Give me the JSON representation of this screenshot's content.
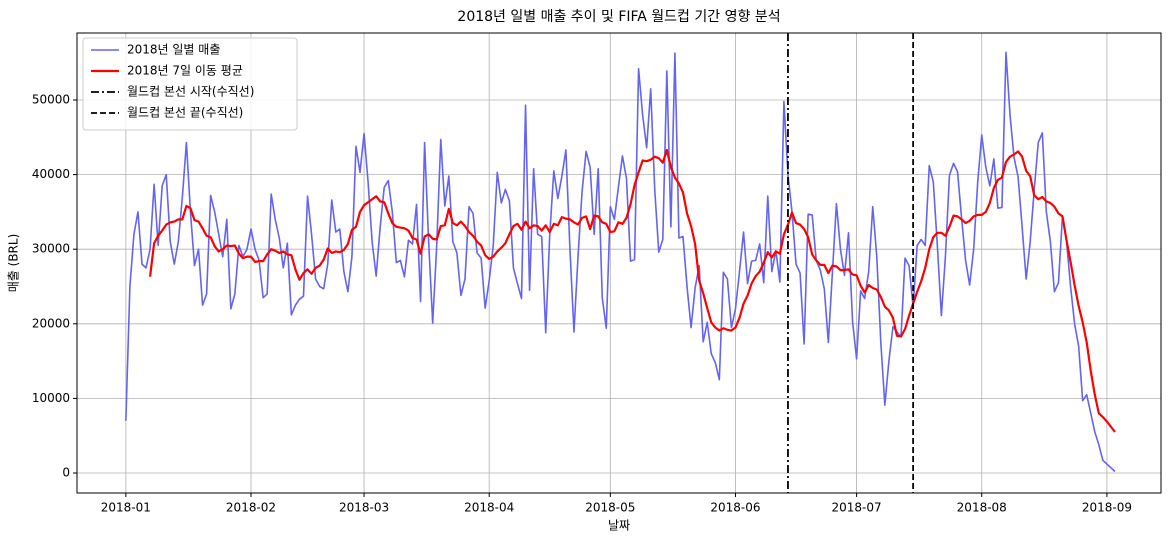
{
  "chart_data": {
    "type": "line",
    "title": "2018년 일별 매출 추이 및 FIFA 월드컵 기간 영향 분석",
    "xlabel": "날짜",
    "ylabel": "매출 (BRL)",
    "x": [
      0,
      1,
      2,
      3,
      4,
      5,
      6,
      7,
      8,
      9,
      10,
      11,
      12,
      13,
      14,
      15,
      16,
      17,
      18,
      19,
      20,
      21,
      22,
      23,
      24,
      25,
      26,
      27,
      28,
      29,
      30,
      31,
      32,
      33,
      34,
      35,
      36,
      37,
      38,
      39,
      40,
      41,
      42,
      43,
      44,
      45,
      46,
      47,
      48,
      49,
      50,
      51,
      52,
      53,
      54,
      55,
      56,
      57,
      58,
      59,
      60,
      61,
      62,
      63,
      64,
      65,
      66,
      67,
      68,
      69,
      70,
      71,
      72,
      73,
      74,
      75,
      76,
      77,
      78,
      79,
      80,
      81,
      82,
      83,
      84,
      85,
      86,
      87,
      88,
      89,
      90,
      91,
      92,
      93,
      94,
      95,
      96,
      97,
      98,
      99,
      100,
      101,
      102,
      103,
      104,
      105,
      106,
      107,
      108,
      109,
      110,
      111,
      112,
      113,
      114,
      115,
      116,
      117,
      118,
      119,
      120,
      121,
      122,
      123,
      124,
      125,
      126,
      127,
      128,
      129,
      130,
      131,
      132,
      133,
      134,
      135,
      136,
      137,
      138,
      139,
      140,
      141,
      142,
      143,
      144,
      145,
      146,
      147,
      148,
      149,
      150,
      151,
      152,
      153,
      154,
      155,
      156,
      157,
      158,
      159,
      160,
      161,
      162,
      163,
      164,
      165,
      166,
      167,
      168,
      169,
      170,
      171,
      172,
      173,
      174,
      175,
      176,
      177,
      178,
      179,
      180,
      181,
      182,
      183,
      184,
      185,
      186,
      187,
      188,
      189,
      190,
      191,
      192,
      193,
      194,
      195,
      196,
      197,
      198,
      199,
      200,
      201,
      202,
      203,
      204,
      205,
      206,
      207,
      208,
      209,
      210,
      211,
      212,
      213,
      214,
      215,
      216,
      217,
      218,
      219,
      220,
      221,
      222,
      223,
      224,
      225,
      226,
      227,
      228,
      229,
      230,
      231,
      232,
      233,
      234,
      235,
      236,
      237,
      238,
      239,
      240,
      241,
      242,
      243,
      244,
      245
    ],
    "series": [
      {
        "name": "2018년 일별 매출",
        "color": "#6464f0",
        "width": 1.6,
        "values": [
          7000,
          25000,
          32000,
          35000,
          28000,
          27500,
          30000,
          38700,
          30500,
          38500,
          40000,
          31000,
          28000,
          31000,
          37000,
          44300,
          35000,
          27800,
          30000,
          22500,
          24000,
          37200,
          35000,
          32000,
          29000,
          34000,
          22000,
          24000,
          30500,
          29000,
          30000,
          32700,
          30000,
          28500,
          23500,
          24000,
          37400,
          34000,
          31500,
          27500,
          30800,
          21200,
          22500,
          23300,
          23700,
          37100,
          32000,
          26000,
          25000,
          24700,
          28000,
          36600,
          32300,
          32700,
          27000,
          24300,
          29000,
          43800,
          40300,
          45500,
          39000,
          31000,
          26400,
          33000,
          38300,
          39200,
          35000,
          28200,
          28500,
          26300,
          31200,
          30700,
          36000,
          23000,
          44300,
          31000,
          20100,
          30500,
          44700,
          35800,
          39800,
          31000,
          29500,
          23800,
          26000,
          35700,
          34800,
          29500,
          28800,
          22100,
          25800,
          30500,
          40300,
          36200,
          38000,
          36500,
          27500,
          25400,
          23400,
          49300,
          24500,
          40800,
          32000,
          31700,
          18800,
          32000,
          40500,
          36800,
          39800,
          43300,
          30000,
          18900,
          29000,
          37700,
          43100,
          41000,
          32000,
          40800,
          23500,
          19400,
          35700,
          34000,
          38300,
          42500,
          39500,
          28400,
          28600,
          54200,
          48000,
          43600,
          51500,
          38000,
          29600,
          31300,
          53900,
          33000,
          56300,
          31500,
          31700,
          25000,
          19500,
          24800,
          27800,
          17600,
          20200,
          16000,
          14800,
          12500,
          26900,
          26000,
          19500,
          22000,
          27000,
          32300,
          25400,
          28400,
          28500,
          30700,
          25500,
          37100,
          27000,
          29800,
          25600,
          49800,
          40000,
          35000,
          28000,
          26800,
          17300,
          34700,
          34600,
          28500,
          27200,
          24700,
          17500,
          26800,
          36100,
          30000,
          26500,
          32200,
          20300,
          15300,
          24400,
          23400,
          27000,
          35700,
          29000,
          17500,
          9100,
          15000,
          19600,
          18900,
          18300,
          28800,
          27800,
          22300,
          30500,
          31300,
          30500,
          41200,
          39000,
          30500,
          21100,
          29000,
          39900,
          41500,
          40400,
          34200,
          28500,
          25200,
          30000,
          39000,
          45300,
          41000,
          38500,
          42100,
          35500,
          35600,
          56400,
          48000,
          42300,
          39700,
          33000,
          26000,
          31000,
          38000,
          44300,
          45600,
          35000,
          31000,
          24300,
          25500,
          34500,
          31000,
          25000,
          20000,
          17000,
          9700,
          10500,
          8000,
          5500,
          3800,
          1700,
          1200,
          700,
          200
        ]
      },
      {
        "name": "2018년 7일 이동 평균",
        "color": "#ff0000",
        "width": 2.2,
        "values": [
          null,
          null,
          null,
          null,
          null,
          null,
          26300,
          30800,
          31800,
          32500,
          33300,
          33600,
          33700,
          34000,
          34000,
          35800,
          35500,
          33900,
          33700,
          32800,
          31800,
          31600,
          30400,
          29700,
          30000,
          30500,
          30400,
          30500,
          29400,
          28800,
          29000,
          29000,
          28300,
          28400,
          28400,
          29300,
          30000,
          29800,
          29500,
          29700,
          29300,
          29200,
          27300,
          25900,
          26800,
          27300,
          26700,
          27500,
          27800,
          28600,
          30100,
          29500,
          29700,
          29600,
          29900,
          30700,
          32600,
          33000,
          35000,
          35900,
          36300,
          36700,
          37100,
          36400,
          36300,
          34800,
          33500,
          33000,
          32900,
          32800,
          32500,
          31500,
          31300,
          29400,
          31700,
          32000,
          31400,
          31300,
          33100,
          33200,
          35400,
          33500,
          33200,
          33700,
          33100,
          32300,
          31800,
          31000,
          30500,
          29200,
          28700,
          29000,
          29700,
          30200,
          30800,
          32000,
          33100,
          33400,
          32600,
          33700,
          32800,
          33200,
          33100,
          32500,
          33200,
          32300,
          33400,
          33200,
          34300,
          34100,
          34000,
          33600,
          33300,
          34200,
          34400,
          32700,
          34500,
          34400,
          33600,
          33400,
          32300,
          32400,
          33600,
          33400,
          34200,
          36000,
          38600,
          40300,
          41900,
          41800,
          42000,
          42400,
          42200,
          41600,
          43300,
          41000,
          39600,
          38800,
          37600,
          34800,
          33100,
          30700,
          25800,
          24100,
          22100,
          20200,
          19500,
          19100,
          19400,
          19200,
          19100,
          19500,
          20800,
          22700,
          23800,
          25400,
          26400,
          27000,
          28200,
          29600,
          28900,
          29700,
          29400,
          32000,
          33300,
          34900,
          33500,
          33300,
          32700,
          31600,
          29300,
          28500,
          27900,
          27900,
          26800,
          27800,
          27700,
          27200,
          27200,
          27300,
          26600,
          26500,
          25100,
          24200,
          25200,
          24800,
          24600,
          23600,
          22300,
          21800,
          20800,
          18400,
          18300,
          19300,
          21100,
          22700,
          24300,
          25700,
          27500,
          30000,
          31600,
          32200,
          32200,
          31800,
          33000,
          34500,
          34400,
          34000,
          33500,
          33800,
          34400,
          34600,
          34600,
          35000,
          36200,
          38200,
          39300,
          39600,
          41700,
          42400,
          42700,
          43100,
          42400,
          40500,
          39800,
          37200,
          36700,
          37000,
          36400,
          36200,
          35700,
          34800,
          34400,
          31200,
          28300,
          25200,
          22400,
          20200,
          17500,
          13700,
          10500,
          8000,
          7500,
          6900,
          6200,
          5500
        ]
      }
    ],
    "vlines": [
      {
        "x": 164,
        "label": "월드컵 본선 시작(수직선)",
        "color": "#000000",
        "style": "dashdot"
      },
      {
        "x": 195,
        "label": "월드컵 본선 끝(수직선)",
        "color": "#000000",
        "style": "dashed"
      }
    ],
    "xlim": [
      -12.1,
      256.4
    ],
    "xticks": [
      {
        "value": 0,
        "label": "2018-01"
      },
      {
        "value": 31,
        "label": "2018-02"
      },
      {
        "value": 59,
        "label": "2018-03"
      },
      {
        "value": 90,
        "label": "2018-04"
      },
      {
        "value": 120,
        "label": "2018-05"
      },
      {
        "value": 151,
        "label": "2018-06"
      },
      {
        "value": 181,
        "label": "2018-07"
      },
      {
        "value": 212,
        "label": "2018-08"
      },
      {
        "value": 243,
        "label": "2018-09"
      }
    ],
    "ylim": [
      -2680,
      58980
    ],
    "yticks": [
      0,
      10000,
      20000,
      30000,
      40000,
      50000
    ],
    "grid": true,
    "legend": "upper-left"
  }
}
